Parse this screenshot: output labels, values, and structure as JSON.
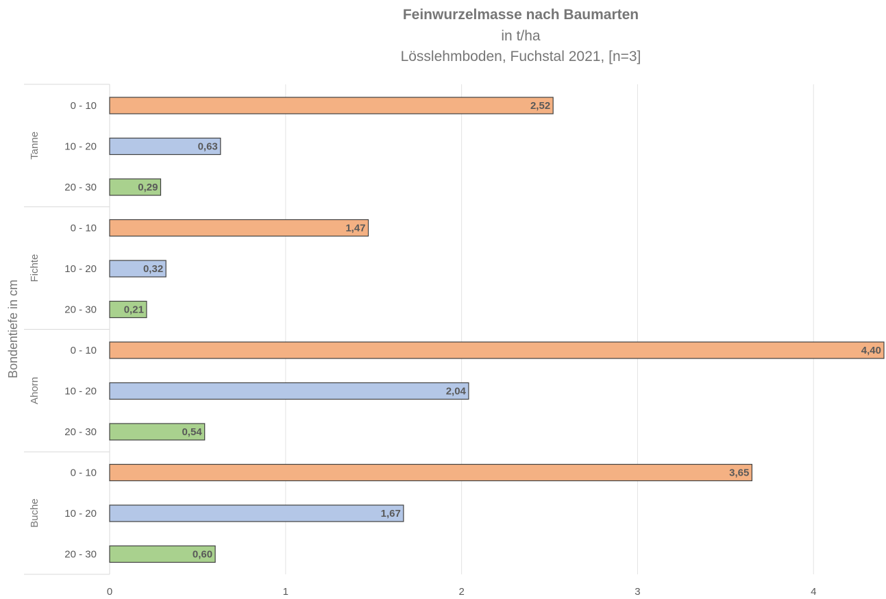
{
  "chart_data": {
    "type": "bar",
    "orientation": "horizontal",
    "title": "Feinwurzelmasse nach Baumarten",
    "subtitle_lines": [
      "in t/ha",
      "Lösslehmboden, Fuchstal 2021, [n=3]"
    ],
    "ylabel": "Bondentiefe in cm",
    "xlabel": "",
    "xlim": [
      0,
      4.4
    ],
    "x_ticks": [
      "0",
      "1",
      "2",
      "3",
      "4"
    ],
    "grid": true,
    "legend": "none",
    "depth_colors": {
      "0 - 10": "#F4B183",
      "10 - 20": "#B4C7E7",
      "20 - 30": "#A9D18E"
    },
    "groups": [
      {
        "name": "Tanne",
        "bars": [
          {
            "category": "0 - 10",
            "value": 2.52,
            "label": "2,52"
          },
          {
            "category": "10 - 20",
            "value": 0.63,
            "label": "0,63"
          },
          {
            "category": "20 - 30",
            "value": 0.29,
            "label": "0,29"
          }
        ]
      },
      {
        "name": "Fichte",
        "bars": [
          {
            "category": "0 - 10",
            "value": 1.47,
            "label": "1,47"
          },
          {
            "category": "10 - 20",
            "value": 0.32,
            "label": "0,32"
          },
          {
            "category": "20 - 30",
            "value": 0.21,
            "label": "0,21"
          }
        ]
      },
      {
        "name": "Ahorn",
        "bars": [
          {
            "category": "0 - 10",
            "value": 4.4,
            "label": "4,40"
          },
          {
            "category": "10 - 20",
            "value": 2.04,
            "label": "2,04"
          },
          {
            "category": "20 - 30",
            "value": 0.54,
            "label": "0,54"
          }
        ]
      },
      {
        "name": "Buche",
        "bars": [
          {
            "category": "0 - 10",
            "value": 3.65,
            "label": "3,65"
          },
          {
            "category": "10 - 20",
            "value": 1.67,
            "label": "1,67"
          },
          {
            "category": "20 - 30",
            "value": 0.6,
            "label": "0,60"
          }
        ]
      }
    ]
  }
}
